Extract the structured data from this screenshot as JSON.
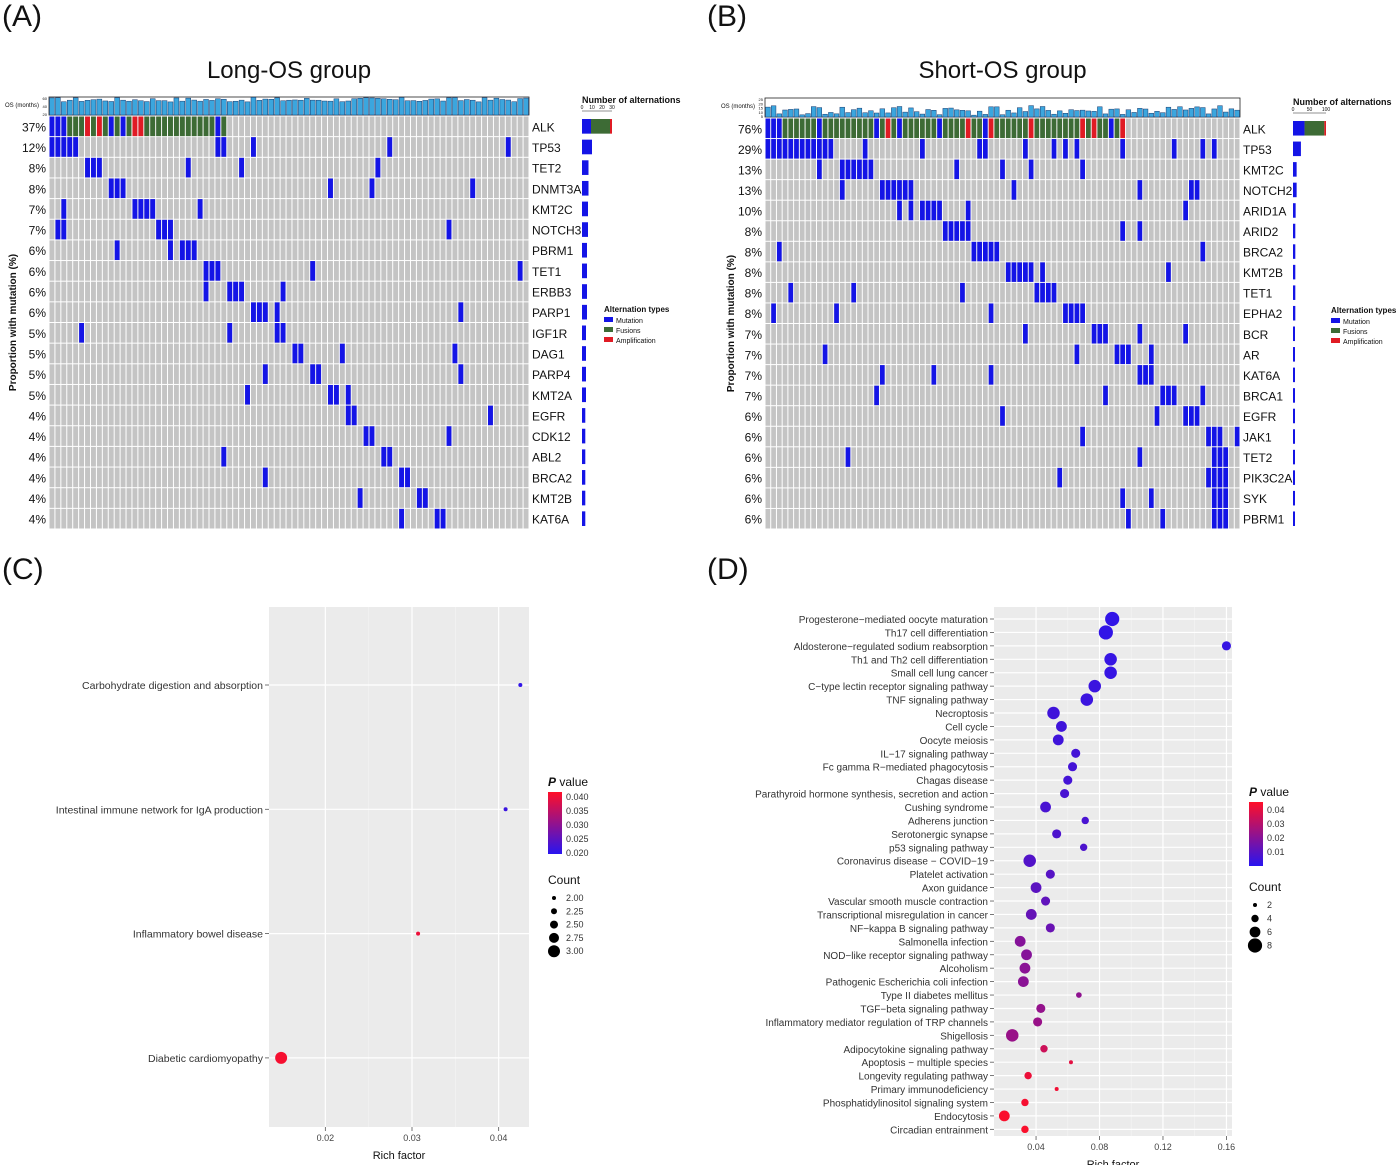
{
  "figure": {
    "label_a": "(A)",
    "label_b": "(B)",
    "label_c": "(C)",
    "label_d": "(D)"
  },
  "chart_data": [
    {
      "type": "heatmap",
      "panel": "A",
      "title": "Long-OS group",
      "ylabel": "Proportion with mutation (%)",
      "os_label": "OS (months)",
      "os_ticks": [
        "60",
        "40",
        "20"
      ],
      "n_samples": 81,
      "genes": [
        "ALK",
        "TP53",
        "TET2",
        "DNMT3A",
        "KMT2C",
        "NOTCH3",
        "PBRM1",
        "TET1",
        "ERBB3",
        "PARP1",
        "IGF1R",
        "DAG1",
        "PARP4",
        "KMT2A",
        "EGFR",
        "CDK12",
        "ABL2",
        "BRCA2",
        "KMT2B",
        "KAT6A"
      ],
      "percents": [
        "37%",
        "12%",
        "8%",
        "8%",
        "7%",
        "7%",
        "6%",
        "6%",
        "6%",
        "6%",
        "5%",
        "5%",
        "5%",
        "5%",
        "4%",
        "4%",
        "4%",
        "4%",
        "4%",
        "4%"
      ],
      "alt_counts": [
        30,
        10,
        6.5,
        6.5,
        6,
        6,
        5,
        5,
        5,
        5,
        4,
        4,
        4,
        4,
        3.3,
        3.3,
        3.3,
        3.3,
        3.3,
        3.3
      ],
      "alk_split": {
        "mutation": 9,
        "fusion": 19,
        "amplification": 2
      },
      "alt_axis_title": "Number of alternations",
      "alt_axis_ticks": [
        "0",
        "10",
        "20",
        "30"
      ],
      "alt_axis_max": 30,
      "legend_title": "Alternation types",
      "legend": [
        "Mutation",
        "Fusions",
        "Amplification"
      ]
    },
    {
      "type": "heatmap",
      "panel": "B",
      "title": "Short-OS group",
      "ylabel": "Proportion with mutation (%)",
      "os_label": "OS (months)",
      "os_ticks": [
        "25",
        "20",
        "15",
        "10",
        "5"
      ],
      "n_samples": 83,
      "genes": [
        "ALK",
        "TP53",
        "KMT2C",
        "NOTCH2",
        "ARID1A",
        "ARID2",
        "BRCA2",
        "KMT2B",
        "TET1",
        "EPHA2",
        "BCR",
        "AR",
        "KAT6A",
        "BRCA1",
        "EGFR",
        "JAK1",
        "TET2",
        "PIK3C2A",
        "SYK",
        "PBRM1"
      ],
      "percents": [
        "76%",
        "29%",
        "13%",
        "13%",
        "10%",
        "8%",
        "8%",
        "8%",
        "8%",
        "8%",
        "7%",
        "7%",
        "7%",
        "7%",
        "6%",
        "6%",
        "6%",
        "6%",
        "6%",
        "6%"
      ],
      "alt_counts": [
        100,
        24,
        11,
        11,
        8,
        7,
        7,
        7,
        7,
        7,
        6,
        6,
        6,
        6,
        5,
        5,
        5,
        5,
        5,
        5
      ],
      "alk_split": {
        "mutation": 35,
        "fusion": 60,
        "amplification": 5
      },
      "alt_axis_title": "Number of alternations",
      "alt_axis_ticks": [
        "0",
        "50",
        "100"
      ],
      "alt_axis_max": 100,
      "legend_title": "Alternation types",
      "legend": [
        "Mutation",
        "Fusions",
        "Amplification"
      ]
    },
    {
      "type": "scatter",
      "panel": "C",
      "xlabel": "Rich factor",
      "x_ticks": [
        0.02,
        0.03,
        0.04
      ],
      "xlim": [
        0.0135,
        0.0435
      ],
      "pvalue_title": "P value",
      "pvalue_ticks": [
        "0.040",
        "0.035",
        "0.030",
        "0.025",
        "0.020"
      ],
      "pvalue_range": [
        0.018,
        0.042
      ],
      "count_title": "Count",
      "count_ticks": [
        "2.00",
        "2.25",
        "2.50",
        "2.75",
        "3.00"
      ],
      "terms": [
        {
          "name": "Carbohydrate digestion and absorption",
          "rich": 0.0425,
          "p": 0.019,
          "count": 2
        },
        {
          "name": "Intestinal immune network for IgA production",
          "rich": 0.0408,
          "p": 0.02,
          "count": 2
        },
        {
          "name": "Inflammatory bowel disease",
          "rich": 0.0307,
          "p": 0.04,
          "count": 2
        },
        {
          "name": "Diabetic cardiomyopathy",
          "rich": 0.0149,
          "p": 0.041,
          "count": 3
        }
      ]
    },
    {
      "type": "scatter",
      "panel": "D",
      "xlabel": "Rich factor",
      "x_ticks": [
        0.04,
        0.08,
        0.12,
        0.16
      ],
      "xlim": [
        0.0135,
        0.1635
      ],
      "pvalue_title": "P value",
      "pvalue_ticks": [
        "0.04",
        "0.03",
        "0.02",
        "0.01"
      ],
      "pvalue_range": [
        0.0,
        0.046
      ],
      "count_title": "Count",
      "count_ticks": [
        "2",
        "4",
        "6",
        "8"
      ],
      "terms": [
        {
          "name": "Progesterone−mediated oocyte maturation",
          "rich": 0.088,
          "p": 0.002,
          "count": 8
        },
        {
          "name": "Th17 cell differentiation",
          "rich": 0.084,
          "p": 0.002,
          "count": 8
        },
        {
          "name": "Aldosterone−regulated sodium reabsorption",
          "rich": 0.16,
          "p": 0.003,
          "count": 5
        },
        {
          "name": "Th1 and Th2 cell differentiation",
          "rich": 0.087,
          "p": 0.003,
          "count": 7
        },
        {
          "name": "Small cell lung cancer",
          "rich": 0.087,
          "p": 0.003,
          "count": 7
        },
        {
          "name": "C−type lectin receptor signaling pathway",
          "rich": 0.077,
          "p": 0.004,
          "count": 7
        },
        {
          "name": "TNF signaling pathway",
          "rich": 0.072,
          "p": 0.004,
          "count": 7
        },
        {
          "name": "Necroptosis",
          "rich": 0.051,
          "p": 0.005,
          "count": 7
        },
        {
          "name": "Cell cycle",
          "rich": 0.056,
          "p": 0.005,
          "count": 6
        },
        {
          "name": "Oocyte meiosis",
          "rich": 0.054,
          "p": 0.005,
          "count": 6
        },
        {
          "name": "IL−17 signaling pathway",
          "rich": 0.065,
          "p": 0.006,
          "count": 5
        },
        {
          "name": "Fc gamma R−mediated phagocytosis",
          "rich": 0.063,
          "p": 0.006,
          "count": 5
        },
        {
          "name": "Chagas disease",
          "rich": 0.06,
          "p": 0.006,
          "count": 5
        },
        {
          "name": "Parathyroid hormone synthesis, secretion and action",
          "rich": 0.058,
          "p": 0.007,
          "count": 5
        },
        {
          "name": "Cushing syndrome",
          "rich": 0.046,
          "p": 0.007,
          "count": 6
        },
        {
          "name": "Adherens junction",
          "rich": 0.071,
          "p": 0.007,
          "count": 4
        },
        {
          "name": "Serotonergic synapse",
          "rich": 0.053,
          "p": 0.008,
          "count": 5
        },
        {
          "name": "p53 signaling pathway",
          "rich": 0.07,
          "p": 0.008,
          "count": 4
        },
        {
          "name": "Coronavirus disease − COVID−19",
          "rich": 0.036,
          "p": 0.009,
          "count": 7
        },
        {
          "name": "Platelet activation",
          "rich": 0.049,
          "p": 0.01,
          "count": 5
        },
        {
          "name": "Axon guidance",
          "rich": 0.04,
          "p": 0.011,
          "count": 6
        },
        {
          "name": "Vascular smooth muscle contraction",
          "rich": 0.046,
          "p": 0.012,
          "count": 5
        },
        {
          "name": "Transcriptional misregulation in cancer",
          "rich": 0.037,
          "p": 0.013,
          "count": 6
        },
        {
          "name": "NF−kappa B signaling pathway",
          "rich": 0.049,
          "p": 0.014,
          "count": 5
        },
        {
          "name": "Salmonella infection",
          "rich": 0.03,
          "p": 0.02,
          "count": 6
        },
        {
          "name": "NOD−like receptor signaling pathway",
          "rich": 0.034,
          "p": 0.02,
          "count": 6
        },
        {
          "name": "Alcoholism",
          "rich": 0.033,
          "p": 0.021,
          "count": 6
        },
        {
          "name": "Pathogenic Escherichia coli infection",
          "rich": 0.032,
          "p": 0.021,
          "count": 6
        },
        {
          "name": "Type II diabetes mellitus",
          "rich": 0.067,
          "p": 0.022,
          "count": 3
        },
        {
          "name": "TGF−beta signaling pathway",
          "rich": 0.043,
          "p": 0.023,
          "count": 5
        },
        {
          "name": "Inflammatory mediator regulation of TRP channels",
          "rich": 0.041,
          "p": 0.024,
          "count": 5
        },
        {
          "name": "Shigellosis",
          "rich": 0.025,
          "p": 0.024,
          "count": 7
        },
        {
          "name": "Adipocytokine signaling pathway",
          "rich": 0.045,
          "p": 0.035,
          "count": 4
        },
        {
          "name": "Apoptosis − multiple species",
          "rich": 0.062,
          "p": 0.04,
          "count": 2
        },
        {
          "name": "Longevity regulating pathway",
          "rich": 0.035,
          "p": 0.042,
          "count": 4
        },
        {
          "name": "Primary immunodeficiency",
          "rich": 0.053,
          "p": 0.043,
          "count": 2
        },
        {
          "name": "Phosphatidylinositol signaling system",
          "rich": 0.033,
          "p": 0.044,
          "count": 4
        },
        {
          "name": "Endocytosis",
          "rich": 0.02,
          "p": 0.045,
          "count": 6
        },
        {
          "name": "Circadian entrainment",
          "rich": 0.033,
          "p": 0.045,
          "count": 4
        }
      ]
    }
  ]
}
